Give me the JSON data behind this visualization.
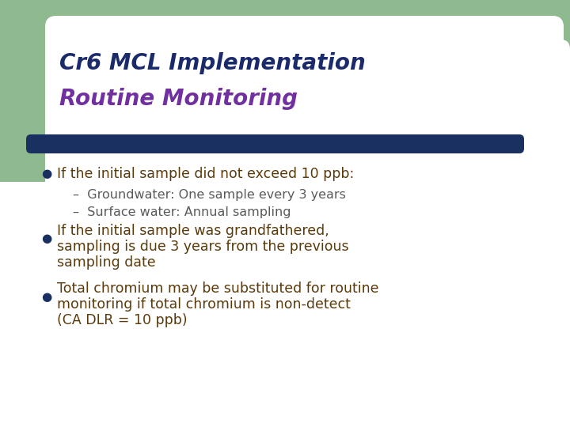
{
  "title_line1": "Cr6 MCL Implementation",
  "title_line2": "Routine Monitoring",
  "title_line1_color": "#1a2a6b",
  "title_line2_color": "#7030a0",
  "background_color": "#ffffff",
  "sidebar_color": "#8fba8f",
  "divider_color": "#1a3060",
  "bullet_color": "#1a3060",
  "text_color": "#5a3a0a",
  "sub_text_color": "#5a5a5a",
  "bullet1": "If the initial sample did not exceed 10 ppb:",
  "sub1": "Groundwater: One sample every 3 years",
  "sub2": "Surface water: Annual sampling",
  "bullet2_line1": "If the initial sample was grandfathered,",
  "bullet2_line2": "sampling is due 3 years from the previous",
  "bullet2_line3": "sampling date",
  "bullet3_line1": "Total chromium may be substituted for routine",
  "bullet3_line2": "monitoring if total chromium is non-detect",
  "bullet3_line3": "(CA DLR = 10 ppb)"
}
